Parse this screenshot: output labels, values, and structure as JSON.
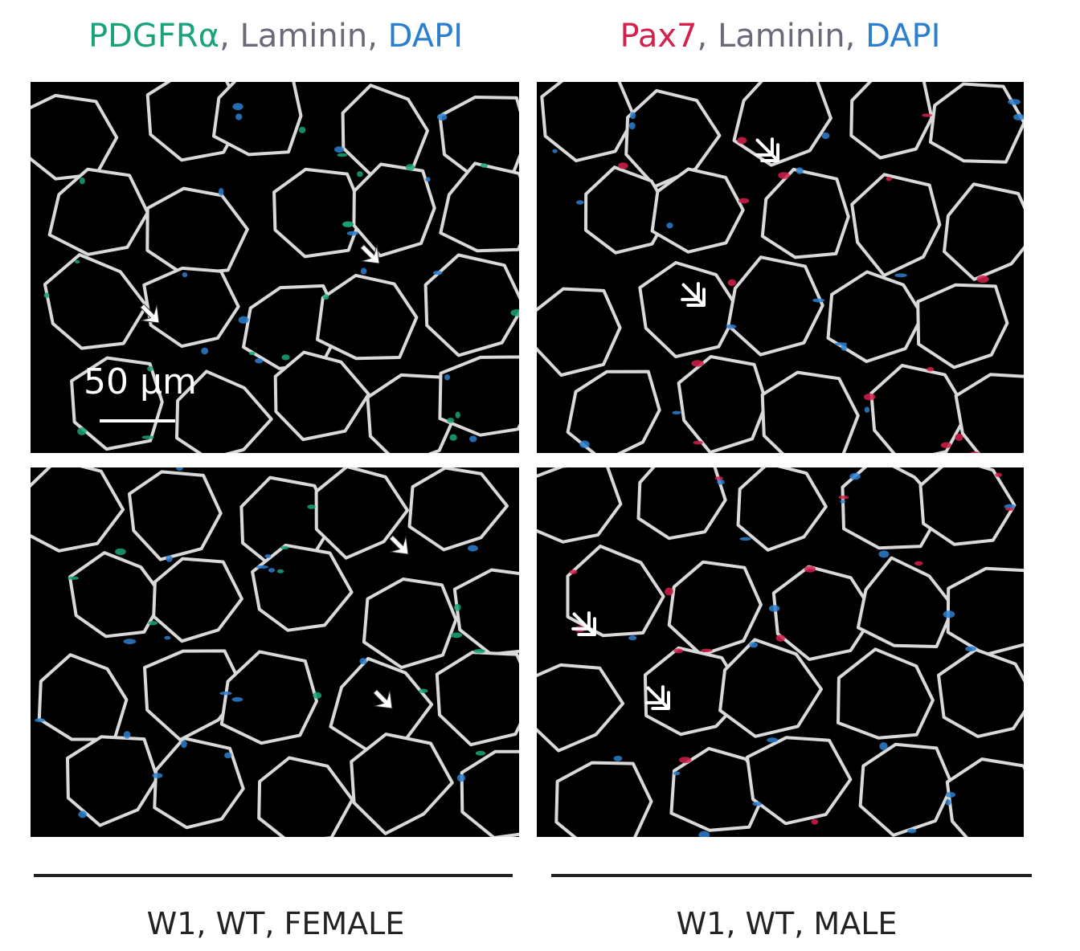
{
  "left_header": {
    "marker1": "PDGFRα",
    "sep1": ", ",
    "marker2": "Laminin",
    "sep2": ", ",
    "marker3": "DAPI"
  },
  "right_header": {
    "marker1": "Pax7",
    "sep1": ", ",
    "marker2": "Laminin",
    "sep2": ", ",
    "marker3": "DAPI"
  },
  "scale_bar": {
    "label": "50 µm"
  },
  "captions": {
    "left": "W1, WT, FEMALE",
    "right": "W1, WT, MALE"
  },
  "colors": {
    "pdgfra": "#1aa37a",
    "pax7": "#d4204a",
    "laminin": "#6a6a78",
    "dapi": "#2b7fd0",
    "membrane": "#d9d9d9",
    "fiber": "#000000"
  },
  "icons": {
    "single_arrow": "arrowhead-icon",
    "double_arrow": "double-chevron-arrow-icon"
  }
}
